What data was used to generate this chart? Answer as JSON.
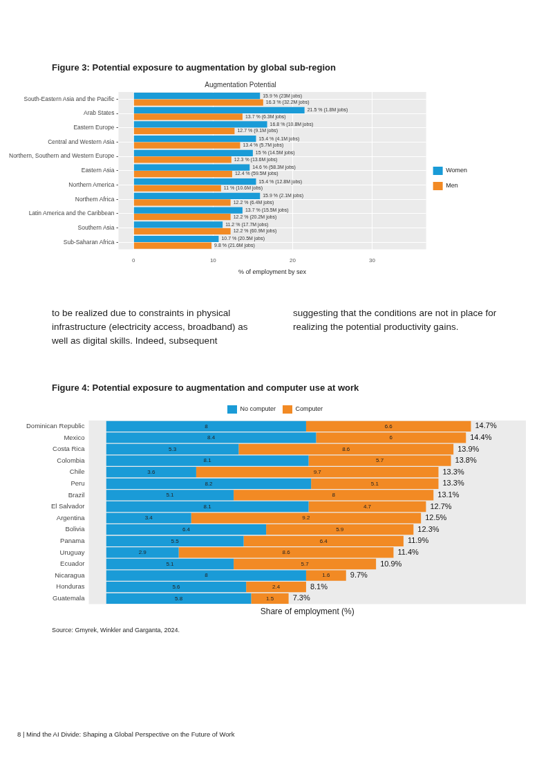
{
  "chart_data": [
    {
      "type": "bar",
      "orientation": "horizontal",
      "title": "Figure 3: Potential exposure to augmentation by global sub-region",
      "subtitle": "Augmentation Potential",
      "xlabel": "% of employment by sex",
      "categories": [
        "South-Eastern Asia and the Pacific",
        "Arab States",
        "Eastern Europe",
        "Central and Western Asia",
        "Northern, Southern and Western Europe",
        "Eastern Asia",
        "Northern America",
        "Northern Africa",
        "Latin America and the Caribbean",
        "Southern Asia",
        "Sub-Saharan Africa"
      ],
      "series": [
        {
          "name": "Women",
          "color": "#1a9bd7",
          "values": [
            15.9,
            21.5,
            16.8,
            15.4,
            15,
            14.6,
            15.4,
            15.9,
            13.7,
            11.2,
            10.7
          ],
          "value_labels": [
            "15.9 % (23M jobs)",
            "21.5 % (1.8M jobs)",
            "16.8 % (10.8M jobs)",
            "15.4 % (4.1M jobs)",
            "15 % (14.5M jobs)",
            "14.6 % (58.3M jobs)",
            "15.4 % (12.8M jobs)",
            "15.9 % (2.1M jobs)",
            "13.7 % (15.5M jobs)",
            "11.2 % (17.7M jobs)",
            "10.7 % (20.5M jobs)"
          ]
        },
        {
          "name": "Men",
          "color": "#f28a24",
          "values": [
            16.3,
            13.7,
            12.7,
            13.4,
            12.3,
            12.4,
            11,
            12.2,
            12.2,
            12.2,
            9.8
          ],
          "value_labels": [
            "16.3 % (32.2M jobs)",
            "13.7 % (6.3M jobs)",
            "12.7 % (9.1M jobs)",
            "13.4 % (5.7M jobs)",
            "12.3 % (13.6M jobs)",
            "12.4 % (59.5M jobs)",
            "11 % (10.6M jobs)",
            "12.2 % (6.4M jobs)",
            "12.2 % (20.2M jobs)",
            "12.2 % (60.9M jobs)",
            "9.8 % (21.6M jobs)"
          ]
        }
      ],
      "xlim": [
        -1.9,
        36.8
      ],
      "xticks": [
        0,
        10,
        20,
        30
      ],
      "grid": true,
      "legend": "right"
    },
    {
      "type": "other",
      "annotations": [
        "to be realized due to constraints in physical infrastructure (electricity access, broadband) as well as digital skills. Indeed, subsequent",
        "suggesting that the conditions are not in place for realizing the potential productivity gains."
      ]
    },
    {
      "type": "bar",
      "orientation": "horizontal",
      "stacked": true,
      "title": "Figure 4: Potential exposure to augmentation and computer use at work",
      "xlabel": "Share of employment (%)",
      "categories": [
        "Dominican Republic",
        "Mexico",
        "Costa Rica",
        "Colombia",
        "Chile",
        "Peru",
        "Brazil",
        "El Salvador",
        "Argentina",
        "Bolivia",
        "Panama",
        "Uruguay",
        "Ecuador",
        "Nicaragua",
        "Honduras",
        "Guatemala"
      ],
      "series": [
        {
          "name": "No computer",
          "color": "#1a9bd7",
          "values": [
            8,
            8.4,
            5.3,
            8.1,
            3.6,
            8.2,
            5.1,
            8.1,
            3.4,
            6.4,
            5.5,
            2.9,
            5.1,
            8,
            5.6,
            5.8
          ]
        },
        {
          "name": "Computer",
          "color": "#f28a24",
          "values": [
            6.6,
            6,
            8.6,
            5.7,
            9.7,
            5.1,
            8,
            4.7,
            9.2,
            5.9,
            6.4,
            8.6,
            5.7,
            1.6,
            2.4,
            1.5
          ]
        }
      ],
      "data_labels": true,
      "totals": [
        "14.7%",
        "14.4%",
        "13.9%",
        "13.8%",
        "13.3%",
        "13.3%",
        "13.1%",
        "12.7%",
        "12.5%",
        "12.3%",
        "11.9%",
        "11.4%",
        "10.9%",
        "9.7%",
        "8.1%",
        "7.3%"
      ],
      "xlim": [
        -0.7,
        16.8
      ],
      "tick_labels": "y",
      "legend": "top",
      "annotations": [
        "Source: Gmyrek, Winkler and Garganta, 2024.",
        "8 | Mind the AI Divide: Shaping a Global Perspective on the Future of Work"
      ]
    }
  ]
}
